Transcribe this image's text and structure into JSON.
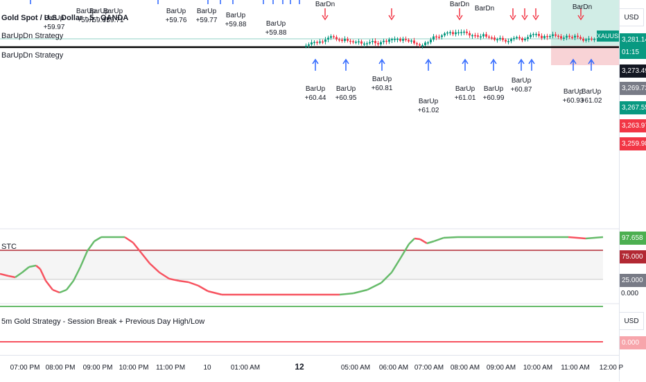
{
  "header": {
    "symbol_title": "Gold Spot / U.S. Dollar · 5 · OANDA",
    "strategy_legend": "BarUpDn Strategy",
    "strategy_legend_2": "BarUpDn Strategy",
    "symbol_tag": "XAUUSD"
  },
  "price_scale": {
    "currency": "USD",
    "tags": [
      {
        "text": "3,281.140",
        "color": "#089981"
      },
      {
        "text": "01:15",
        "color": "#089981"
      },
      {
        "text": "3,273.493",
        "color": "#131722"
      },
      {
        "text": "3,269.737",
        "color": "#787b86"
      },
      {
        "text": "3,267.557",
        "color": "#089981"
      },
      {
        "text": "3,263.974",
        "color": "#f23645"
      },
      {
        "text": "3,259.981",
        "color": "#f23645"
      }
    ]
  },
  "signals": {
    "top_labels": [
      {
        "name": "BarUp",
        "value": "+59.7"
      },
      {
        "name": "BarUp",
        "value": "+59.67"
      },
      {
        "name": "BarUp",
        "value": "+59.71"
      },
      {
        "name": "BarUp",
        "value": "+59.76"
      },
      {
        "name": "BarUp",
        "value": "+59.77"
      },
      {
        "name": "BarUp",
        "value": "+59.88"
      }
    ],
    "bottom_labels": [
      {
        "name": "BarUp",
        "value": "+60.44"
      },
      {
        "name": "BarUp",
        "value": "+60.95"
      },
      {
        "name": "BarUp",
        "value": "+60.81"
      },
      {
        "name": "BarUp",
        "value": "+61.02"
      },
      {
        "name": "BarUp",
        "value": "+61.01"
      },
      {
        "name": "BarUp",
        "value": "+60.99"
      },
      {
        "name": "BarUp",
        "value": "+60.87"
      },
      {
        "name": "BarUp",
        "value": "+60.93"
      },
      {
        "name": "BarUp",
        "value": "+61.02"
      }
    ],
    "down_label": "BarDn",
    "left_value": "+59.97",
    "left_value_2": "+59.88"
  },
  "stc": {
    "label": "STC",
    "tags": [
      {
        "text": "97.658",
        "color": "#4caf50"
      },
      {
        "text": "75.000",
        "color": "#b22833"
      },
      {
        "text": "25.000",
        "color": "#787b86"
      }
    ],
    "zero": "0.000"
  },
  "gold_strategy": {
    "label": "5m Gold Strategy - Session Break + Previous Day High/Low",
    "currency": "USD",
    "zero_tag": "0.000"
  },
  "time_axis": {
    "labels": [
      {
        "text": "07:00 PM",
        "bold": false
      },
      {
        "text": "08:00 PM",
        "bold": false
      },
      {
        "text": "09:00 PM",
        "bold": false
      },
      {
        "text": "10:00 PM",
        "bold": false
      },
      {
        "text": "11:00 PM",
        "bold": false
      },
      {
        "text": "10",
        "bold": false
      },
      {
        "text": "01:00 AM",
        "bold": false
      },
      {
        "text": "12",
        "bold": true
      },
      {
        "text": "05:00 AM",
        "bold": false
      },
      {
        "text": "06:00 AM",
        "bold": false
      },
      {
        "text": "07:00 AM",
        "bold": false
      },
      {
        "text": "08:00 AM",
        "bold": false
      },
      {
        "text": "09:00 AM",
        "bold": false
      },
      {
        "text": "10:00 AM",
        "bold": false
      },
      {
        "text": "11:00 AM",
        "bold": false
      },
      {
        "text": "12:00 P",
        "bold": false
      }
    ]
  }
}
